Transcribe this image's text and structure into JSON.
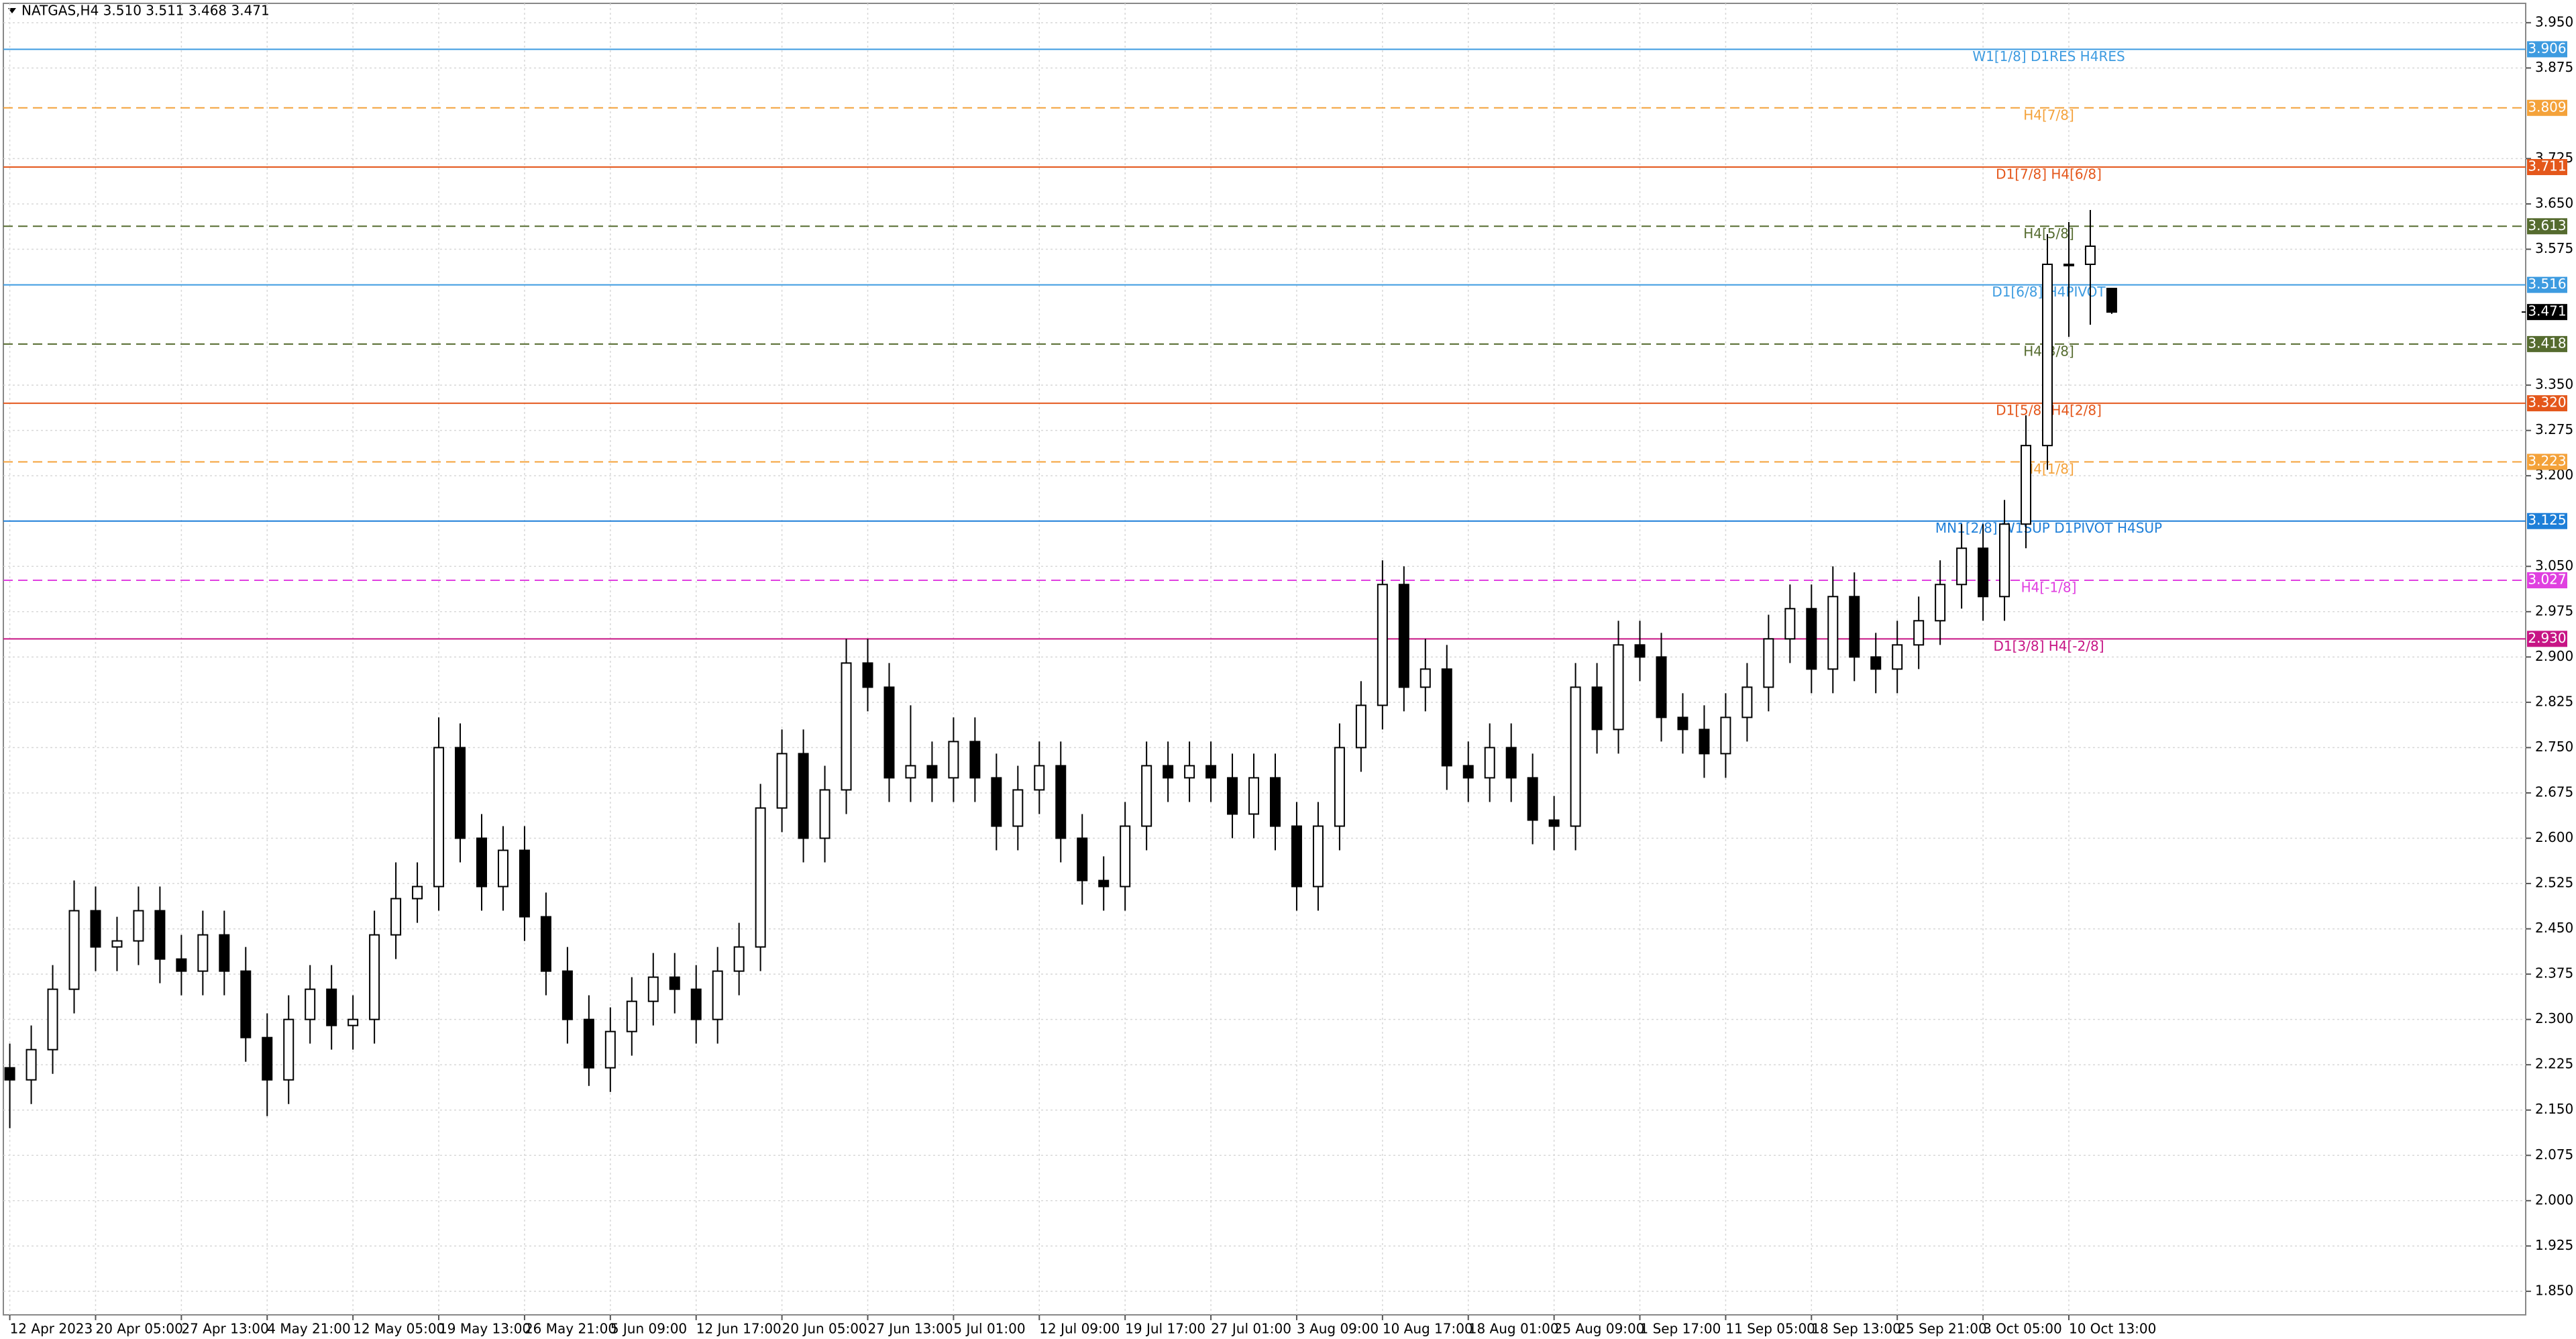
{
  "chart_data": {
    "type": "candlestick",
    "title": "NATGAS,H4  3.510 3.511 3.468 3.471",
    "open": [
      2.22,
      2.2,
      2.25,
      2.35,
      2.48,
      2.42,
      2.43,
      2.48,
      2.4,
      2.38,
      2.44,
      2.38,
      2.27,
      2.2,
      2.3,
      2.35,
      2.29,
      2.3,
      2.44,
      2.5,
      2.52,
      2.75,
      2.6,
      2.52,
      2.58,
      2.47,
      2.38,
      2.3,
      2.22,
      2.28,
      2.33,
      2.37,
      2.35,
      2.3,
      2.38,
      2.42,
      2.65,
      2.74,
      2.6,
      2.68,
      2.89,
      2.85,
      2.7,
      2.72,
      2.7,
      2.76,
      2.7,
      2.62,
      2.68,
      2.72,
      2.6,
      2.53,
      2.52,
      2.62,
      2.72,
      2.7,
      2.72,
      2.7,
      2.64,
      2.7,
      2.62,
      2.52,
      2.62,
      2.75,
      2.82,
      3.02,
      2.85,
      2.88,
      2.72,
      2.7,
      2.75,
      2.7,
      2.63,
      2.62,
      2.85,
      2.78,
      2.92,
      2.9,
      2.8,
      2.78,
      2.74,
      2.8,
      2.85,
      2.93,
      2.98,
      2.88,
      3.0,
      2.9,
      2.88,
      2.92,
      2.96,
      3.02,
      3.08,
      3.0,
      3.12,
      3.25,
      3.55,
      3.55,
      3.51
    ],
    "high": [
      2.26,
      2.29,
      2.39,
      2.53,
      2.52,
      2.47,
      2.52,
      2.52,
      2.44,
      2.48,
      2.48,
      2.42,
      2.31,
      2.34,
      2.39,
      2.39,
      2.34,
      2.48,
      2.56,
      2.56,
      2.8,
      2.79,
      2.64,
      2.62,
      2.62,
      2.51,
      2.42,
      2.34,
      2.32,
      2.37,
      2.41,
      2.41,
      2.39,
      2.42,
      2.46,
      2.69,
      2.78,
      2.78,
      2.72,
      2.93,
      2.93,
      2.89,
      2.82,
      2.76,
      2.8,
      2.8,
      2.74,
      2.72,
      2.76,
      2.76,
      2.64,
      2.57,
      2.66,
      2.76,
      2.76,
      2.76,
      2.76,
      2.74,
      2.74,
      2.74,
      2.66,
      2.66,
      2.79,
      2.86,
      3.06,
      3.05,
      2.93,
      2.92,
      2.76,
      2.79,
      2.79,
      2.74,
      2.67,
      2.89,
      2.89,
      2.96,
      2.96,
      2.94,
      2.84,
      2.82,
      2.84,
      2.89,
      2.97,
      3.02,
      3.02,
      3.05,
      3.04,
      2.94,
      2.96,
      3.0,
      3.06,
      3.12,
      3.12,
      3.16,
      3.3,
      3.6,
      3.62,
      3.64,
      3.511
    ],
    "low": [
      2.12,
      2.16,
      2.21,
      2.31,
      2.38,
      2.38,
      2.39,
      2.36,
      2.34,
      2.34,
      2.34,
      2.23,
      2.14,
      2.16,
      2.26,
      2.25,
      2.25,
      2.26,
      2.4,
      2.46,
      2.48,
      2.56,
      2.48,
      2.48,
      2.43,
      2.34,
      2.26,
      2.19,
      2.18,
      2.24,
      2.29,
      2.31,
      2.26,
      2.26,
      2.34,
      2.38,
      2.61,
      2.56,
      2.56,
      2.64,
      2.81,
      2.66,
      2.66,
      2.66,
      2.66,
      2.66,
      2.58,
      2.58,
      2.64,
      2.56,
      2.49,
      2.48,
      2.48,
      2.58,
      2.66,
      2.66,
      2.66,
      2.6,
      2.6,
      2.58,
      2.48,
      2.48,
      2.58,
      2.71,
      2.78,
      2.81,
      2.81,
      2.68,
      2.66,
      2.66,
      2.66,
      2.59,
      2.58,
      2.58,
      2.74,
      2.74,
      2.86,
      2.76,
      2.74,
      2.7,
      2.7,
      2.76,
      2.81,
      2.89,
      2.84,
      2.84,
      2.86,
      2.84,
      2.84,
      2.88,
      2.92,
      2.98,
      2.96,
      2.96,
      3.08,
      3.21,
      3.43,
      3.45,
      3.468
    ],
    "close": [
      2.2,
      2.25,
      2.35,
      2.48,
      2.42,
      2.43,
      2.48,
      2.4,
      2.38,
      2.44,
      2.38,
      2.27,
      2.2,
      2.3,
      2.35,
      2.29,
      2.3,
      2.44,
      2.5,
      2.52,
      2.75,
      2.6,
      2.52,
      2.58,
      2.47,
      2.38,
      2.3,
      2.22,
      2.28,
      2.33,
      2.37,
      2.35,
      2.3,
      2.38,
      2.42,
      2.65,
      2.74,
      2.6,
      2.68,
      2.89,
      2.85,
      2.7,
      2.72,
      2.7,
      2.76,
      2.7,
      2.62,
      2.68,
      2.72,
      2.6,
      2.53,
      2.52,
      2.62,
      2.72,
      2.7,
      2.72,
      2.7,
      2.64,
      2.7,
      2.62,
      2.52,
      2.62,
      2.75,
      2.82,
      3.02,
      2.85,
      2.88,
      2.72,
      2.7,
      2.75,
      2.7,
      2.63,
      2.62,
      2.85,
      2.78,
      2.92,
      2.9,
      2.8,
      2.78,
      2.74,
      2.8,
      2.85,
      2.93,
      2.98,
      2.88,
      3.0,
      2.9,
      2.88,
      2.92,
      2.96,
      3.02,
      3.08,
      3.0,
      3.12,
      3.25,
      3.55,
      3.55,
      3.58,
      3.471
    ],
    "xlim": [
      -0.3,
      117.3
    ],
    "xticks": [
      {
        "value": 0,
        "label": "12 Apr 2023"
      },
      {
        "value": 4,
        "label": "20 Apr 05:00"
      },
      {
        "value": 8,
        "label": "27 Apr 13:00"
      },
      {
        "value": 12,
        "label": "4 May 21:00"
      },
      {
        "value": 16,
        "label": "12 May 05:00"
      },
      {
        "value": 20,
        "label": "19 May 13:00"
      },
      {
        "value": 24,
        "label": "26 May 21:00"
      },
      {
        "value": 28,
        "label": "5 Jun 09:00"
      },
      {
        "value": 32,
        "label": "12 Jun 17:00"
      },
      {
        "value": 36,
        "label": "20 Jun 05:00"
      },
      {
        "value": 40,
        "label": "27 Jun 13:00"
      },
      {
        "value": 44,
        "label": "5 Jul 01:00"
      },
      {
        "value": 48,
        "label": "12 Jul 09:00"
      },
      {
        "value": 52,
        "label": "19 Jul 17:00"
      },
      {
        "value": 56,
        "label": "27 Jul 01:00"
      },
      {
        "value": 60,
        "label": "3 Aug 09:00"
      },
      {
        "value": 64,
        "label": "10 Aug 17:00"
      },
      {
        "value": 68,
        "label": "18 Aug 01:00"
      },
      {
        "value": 72,
        "label": "25 Aug 09:00"
      },
      {
        "value": 76,
        "label": "1 Sep 17:00"
      },
      {
        "value": 80,
        "label": "11 Sep 05:00"
      },
      {
        "value": 84,
        "label": "18 Sep 13:00"
      },
      {
        "value": 88,
        "label": "25 Sep 21:00"
      },
      {
        "value": 92,
        "label": "3 Oct 05:00"
      },
      {
        "value": 96,
        "label": "10 Oct 13:00"
      }
    ],
    "ylim": [
      1.811,
      3.982
    ],
    "yticks": [
      {
        "value": 3.95,
        "label": "3.950"
      },
      {
        "value": 3.875,
        "label": "3.875"
      },
      {
        "value": 3.725,
        "label": "3.725"
      },
      {
        "value": 3.65,
        "label": "3.650"
      },
      {
        "value": 3.575,
        "label": "3.575"
      },
      {
        "value": 3.35,
        "label": "3.350"
      },
      {
        "value": 3.275,
        "label": "3.275"
      },
      {
        "value": 3.2,
        "label": "3.200"
      },
      {
        "value": 3.05,
        "label": "3.050"
      },
      {
        "value": 2.975,
        "label": "2.975"
      },
      {
        "value": 2.9,
        "label": "2.900"
      },
      {
        "value": 2.825,
        "label": "2.825"
      },
      {
        "value": 2.75,
        "label": "2.750"
      },
      {
        "value": 2.675,
        "label": "2.675"
      },
      {
        "value": 2.6,
        "label": "2.600"
      },
      {
        "value": 2.525,
        "label": "2.525"
      },
      {
        "value": 2.45,
        "label": "2.450"
      },
      {
        "value": 2.375,
        "label": "2.375"
      },
      {
        "value": 2.3,
        "label": "2.300"
      },
      {
        "value": 2.225,
        "label": "2.225"
      },
      {
        "value": 2.15,
        "label": "2.150"
      },
      {
        "value": 2.075,
        "label": "2.075"
      },
      {
        "value": 2.0,
        "label": "2.000"
      },
      {
        "value": 1.925,
        "label": "1.925"
      },
      {
        "value": 1.85,
        "label": "1.850"
      }
    ],
    "grid": true,
    "levels": {
      "values": [
        3.906,
        3.809,
        3.711,
        3.613,
        3.516,
        3.418,
        3.32,
        3.223,
        3.125,
        3.027,
        2.93
      ],
      "value_labels": [
        "3.906",
        "3.809",
        "3.711",
        "3.613",
        "3.516",
        "3.418",
        "3.320",
        "3.223",
        "3.125",
        "3.027",
        "2.930"
      ],
      "labels": [
        "W1[1/8] D1RES H4RES",
        "H4[7/8]",
        "D1[7/8] H4[6/8]",
        "H4[5/8]",
        "D1[6/8] H4PIVOT",
        "H4[3/8]",
        "D1[5/8] H4[2/8]",
        "H4[1/8]",
        "MN1[2/8] W1SUP D1PIVOT H4SUP",
        "H4[-1/8]",
        "D1[3/8] H4[-2/8]"
      ],
      "colors": [
        "#3d9be0",
        "#f4a23a",
        "#e4571b",
        "#556b2f",
        "#3d9be0",
        "#556b2f",
        "#e4571b",
        "#f4a23a",
        "#1e7fd8",
        "#e040e0",
        "#c71585"
      ],
      "dashed": [
        false,
        true,
        false,
        true,
        false,
        true,
        false,
        true,
        false,
        true,
        false
      ]
    },
    "last_price": 3.471
  }
}
